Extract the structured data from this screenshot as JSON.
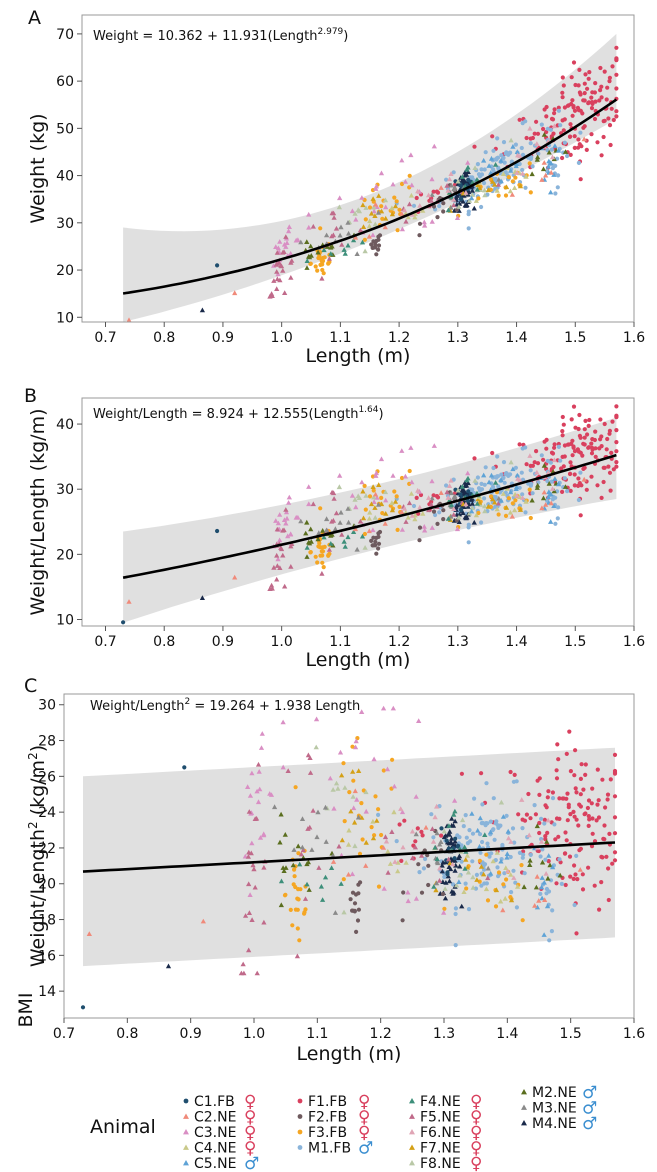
{
  "figure": {
    "legend_title": "Animal",
    "panels": [
      {
        "letter": "A",
        "equation": {
          "pre": "Weight = 10.362 + 11.931(Length",
          "sup": "2.979",
          "post": ")"
        },
        "xlabel": "Length (m)",
        "ylabel": {
          "main": "Weight (kg)",
          "sup": "",
          "post": ""
        },
        "side_label": ""
      },
      {
        "letter": "B",
        "equation": {
          "pre": "Weight/Length = 8.924 + 12.555(Length",
          "sup": "1.64",
          "post": ")"
        },
        "xlabel": "Length (m)",
        "ylabel": {
          "main": "Weight/Length (kg/m)",
          "sup": "",
          "post": ""
        },
        "side_label": ""
      },
      {
        "letter": "C",
        "equation": {
          "pre": "Weight/Length",
          "sup": "2",
          "post": " = 19.264 + 1.938 Length"
        },
        "xlabel": "Length (m)",
        "ylabel": {
          "main": "Weight/Length",
          "sup": "2",
          "post": " (kg/m",
          "sup2": "2",
          "post2": ")"
        },
        "side_label": "BMI"
      }
    ]
  },
  "chart_data": [
    {
      "type": "scatter",
      "panel": "A",
      "xlabel": "Length (m)",
      "ylabel": "Weight (kg)",
      "xlim": [
        0.66,
        1.6
      ],
      "ylim": [
        9,
        74
      ],
      "xticks": [
        0.7,
        0.8,
        0.9,
        1.0,
        1.1,
        1.2,
        1.3,
        1.4,
        1.5,
        1.6
      ],
      "yticks": [
        10,
        20,
        30,
        40,
        50,
        60,
        70
      ],
      "fit": {
        "model": "power",
        "a": 10.362,
        "b": 11.931,
        "p": 2.979,
        "x_range": [
          0.73,
          1.57
        ],
        "band_lower": [
          9,
          26,
          52
        ],
        "band_upper": [
          29,
          36,
          70
        ]
      },
      "grid": false,
      "legend": "bottom"
    },
    {
      "type": "scatter",
      "panel": "B",
      "xlabel": "Length (m)",
      "ylabel": "Weight/Length (kg/m)",
      "xlim": [
        0.66,
        1.6
      ],
      "ylim": [
        9,
        44
      ],
      "xticks": [
        0.7,
        0.8,
        0.9,
        1.0,
        1.1,
        1.2,
        1.3,
        1.4,
        1.5,
        1.6
      ],
      "yticks": [
        10,
        20,
        30,
        40
      ],
      "fit": {
        "model": "power",
        "a": 8.924,
        "b": 12.555,
        "p": 1.64,
        "x_range": [
          0.73,
          1.57
        ],
        "band_lower": [
          9.5,
          20.5,
          28.5
        ],
        "band_upper": [
          23.5,
          30.5,
          41
        ]
      },
      "grid": false,
      "legend": "bottom"
    },
    {
      "type": "scatter",
      "panel": "C",
      "xlabel": "Length (m)",
      "ylabel": "Weight/Length² (kg/m²)",
      "xlim": [
        0.7,
        1.6
      ],
      "ylim": [
        12.5,
        30.6
      ],
      "xticks": [
        0.7,
        0.8,
        0.9,
        1.0,
        1.1,
        1.2,
        1.3,
        1.4,
        1.5,
        1.6
      ],
      "yticks": [
        14,
        16,
        18,
        20,
        22,
        24,
        26,
        28,
        30
      ],
      "fit": {
        "model": "linear",
        "a": 19.264,
        "b": 1.938,
        "x_range": [
          0.73,
          1.57
        ],
        "band_lower": [
          15.4,
          17
        ],
        "band_upper": [
          26,
          27.6
        ]
      },
      "grid": false,
      "legend": "bottom"
    }
  ],
  "legend_items": [
    {
      "label": "C1.FB",
      "sex": "♀",
      "color": "#1f4e6e",
      "shape": "circle"
    },
    {
      "label": "C2.NE",
      "sex": "♀",
      "color": "#f08a7a",
      "shape": "triangle"
    },
    {
      "label": "C3.NE",
      "sex": "♀",
      "color": "#d98fc4",
      "shape": "triangle"
    },
    {
      "label": "C4.NE",
      "sex": "♀",
      "color": "#c9c98a",
      "shape": "triangle"
    },
    {
      "label": "C5.NE",
      "sex": "♂",
      "color": "#5fa3d6",
      "shape": "triangle"
    },
    {
      "label": "F1.FB",
      "sex": "♀",
      "color": "#d9405e",
      "shape": "circle"
    },
    {
      "label": "F2.FB",
      "sex": "♀",
      "color": "#6e5a5e",
      "shape": "circle"
    },
    {
      "label": "F3.FB",
      "sex": "♀",
      "color": "#f5a623",
      "shape": "circle"
    },
    {
      "label": "M1.FB",
      "sex": "♂",
      "color": "#8ab4da",
      "shape": "circle"
    },
    {
      "label": "F4.NE",
      "sex": "♀",
      "color": "#3d8f7a",
      "shape": "triangle"
    },
    {
      "label": "F5.NE",
      "sex": "♀",
      "color": "#c06a8a",
      "shape": "triangle"
    },
    {
      "label": "F6.NE",
      "sex": "♀",
      "color": "#e0a5b5",
      "shape": "triangle"
    },
    {
      "label": "F7.NE",
      "sex": "♀",
      "color": "#d4a017",
      "shape": "triangle"
    },
    {
      "label": "F8.NE",
      "sex": "♀",
      "color": "#b9c8a6",
      "shape": "triangle"
    },
    {
      "label": "M2.NE",
      "sex": "♂",
      "color": "#5a6e1e",
      "shape": "triangle"
    },
    {
      "label": "M3.NE",
      "sex": "♂",
      "color": "#8a8a8a",
      "shape": "triangle"
    },
    {
      "label": "M4.NE",
      "sex": "♂",
      "color": "#1a2a4a",
      "shape": "triangle"
    }
  ],
  "sex_colors": {
    "female": "#d9405e",
    "male": "#3a8ed0"
  }
}
